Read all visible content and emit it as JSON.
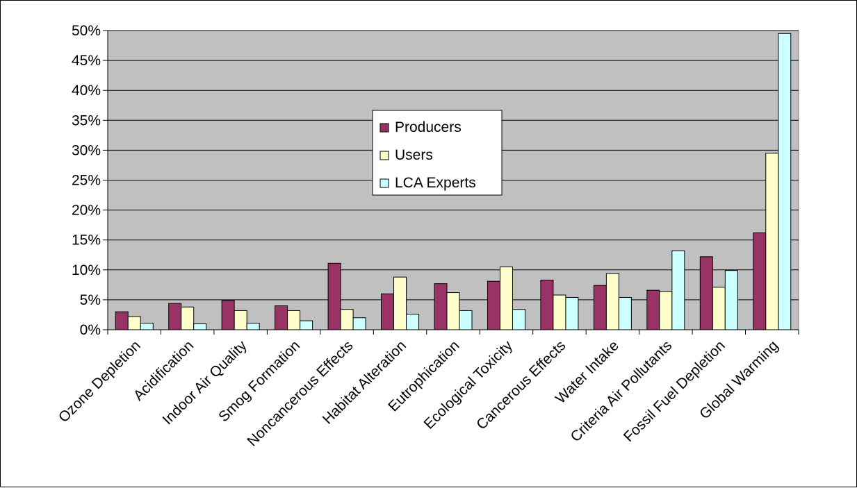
{
  "chart_data": {
    "type": "bar",
    "title": "",
    "xlabel": "",
    "ylabel": "",
    "ylim": [
      0,
      0.5
    ],
    "y_ticks": [
      "0%",
      "5%",
      "10%",
      "15%",
      "20%",
      "25%",
      "30%",
      "35%",
      "40%",
      "45%",
      "50%"
    ],
    "grid": "horizontal",
    "legend_position": "center",
    "categories": [
      "Ozone Depletion",
      "Acidification",
      "Indoor Air Quality",
      "Smog Formation",
      "Noncancerous Effects",
      "Habitat Alteration",
      "Eutrophication",
      "Ecological Toxicity",
      "Cancerous Effects",
      "Water Intake",
      "Criteria Air Pollutants",
      "Fossil Fuel Depletion",
      "Global Warming"
    ],
    "series": [
      {
        "name": "Producers",
        "color": "#993366",
        "values": [
          0.03,
          0.044,
          0.049,
          0.04,
          0.111,
          0.06,
          0.077,
          0.081,
          0.083,
          0.074,
          0.066,
          0.122,
          0.162
        ]
      },
      {
        "name": "Users",
        "color": "#ffffcc",
        "values": [
          0.022,
          0.038,
          0.032,
          0.032,
          0.034,
          0.088,
          0.062,
          0.105,
          0.058,
          0.094,
          0.064,
          0.071,
          0.295
        ]
      },
      {
        "name": "LCA Experts",
        "color": "#ccffff",
        "values": [
          0.011,
          0.01,
          0.011,
          0.015,
          0.02,
          0.026,
          0.032,
          0.034,
          0.054,
          0.054,
          0.132,
          0.099,
          0.495
        ]
      }
    ],
    "plot_background": "#c0c0c0"
  }
}
